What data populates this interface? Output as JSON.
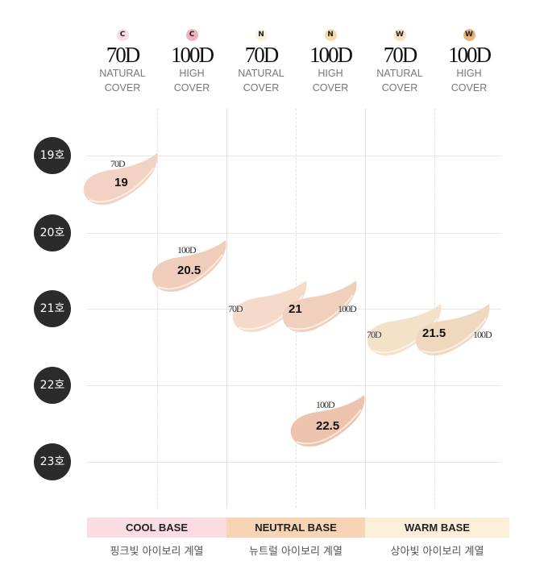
{
  "columns": [
    {
      "badge": "C",
      "badge_color": "#f9dde6",
      "density": "70D",
      "line1": "NATURAL",
      "line2": "COVER"
    },
    {
      "badge": "C",
      "badge_color": "#eeb3c0",
      "density": "100D",
      "line1": "HIGH",
      "line2": "COVER"
    },
    {
      "badge": "N",
      "badge_color": "#fbf1dc",
      "density": "70D",
      "line1": "NATURAL",
      "line2": "COVER"
    },
    {
      "badge": "N",
      "badge_color": "#f6dca9",
      "density": "100D",
      "line1": "HIGH",
      "line2": "COVER"
    },
    {
      "badge": "W",
      "badge_color": "#f9e0c8",
      "density": "70D",
      "line1": "NATURAL",
      "line2": "COVER"
    },
    {
      "badge": "W",
      "badge_color": "#e9b27a",
      "density": "100D",
      "line1": "HIGH",
      "line2": "COVER"
    }
  ],
  "rows": [
    "19호",
    "20호",
    "21호",
    "22호",
    "23호"
  ],
  "swatches": [
    {
      "shade": "19",
      "density": "70D",
      "color": "#f2d2c2"
    },
    {
      "shade": "20.5",
      "density": "100D",
      "color": "#f0cdbb"
    },
    {
      "shade": "21",
      "density": "70D",
      "color": "#f5dac9"
    },
    {
      "shade": "21",
      "density": "100D",
      "color": "#f0d0bc"
    },
    {
      "shade": "21.5",
      "density": "70D",
      "color": "#f3e1c8"
    },
    {
      "shade": "21.5",
      "density": "100D",
      "color": "#efd8bd"
    },
    {
      "shade": "22.5",
      "density": "100D",
      "color": "#eec3ae"
    }
  ],
  "bases": [
    {
      "label": "COOL BASE",
      "desc": "핑크빛 아이보리 계열",
      "color": "#f9dde3"
    },
    {
      "label": "NEUTRAL BASE",
      "desc": "뉴트럴 아이보리 계열",
      "color": "#f7d4b4"
    },
    {
      "label": "WARM BASE",
      "desc": "상아빛 아이보리 계열",
      "color": "#fcefd9"
    }
  ]
}
